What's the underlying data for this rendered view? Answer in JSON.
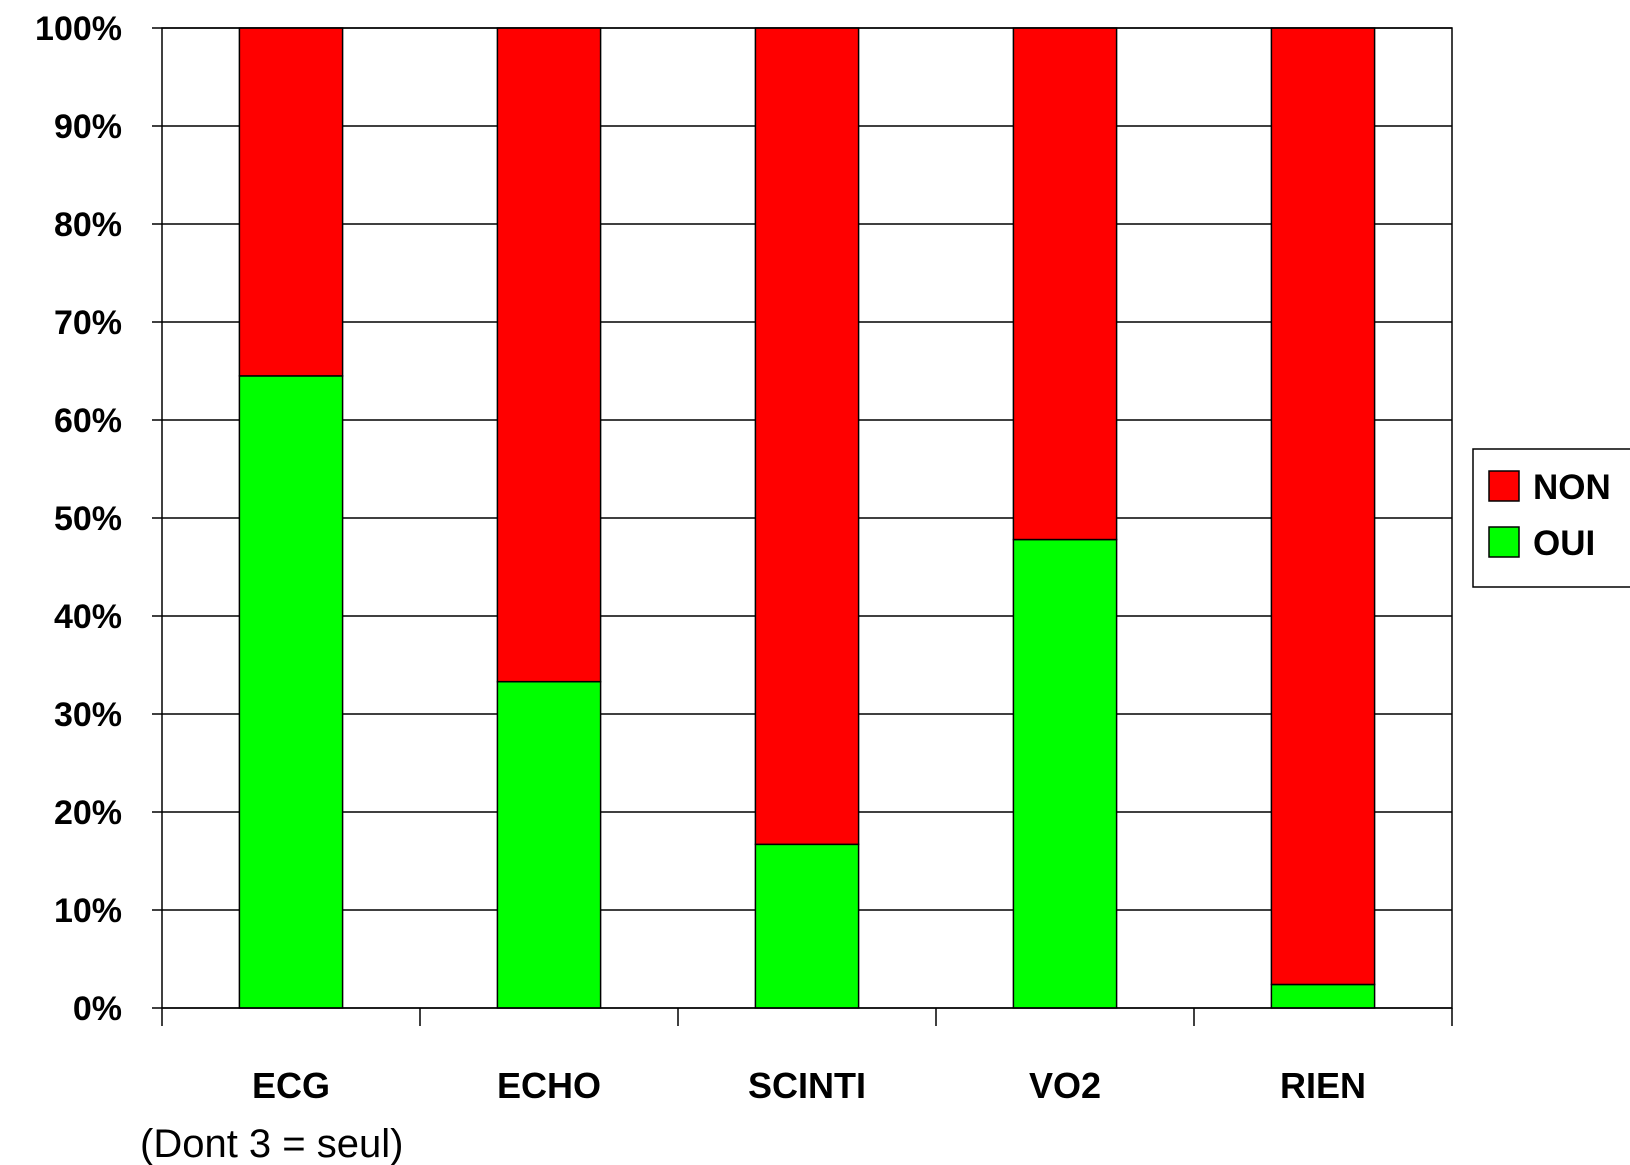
{
  "chart_data": {
    "type": "bar",
    "stacked": true,
    "percent": true,
    "categories": [
      "ECG",
      "ECHO",
      "SCINTI",
      "VO2",
      "RIEN"
    ],
    "series": [
      {
        "name": "OUI",
        "color": "#00FF00",
        "values": [
          64.5,
          33.3,
          16.7,
          47.8,
          2.4
        ]
      },
      {
        "name": "NON",
        "color": "#FF0000",
        "values": [
          35.5,
          66.7,
          83.3,
          52.2,
          97.6
        ]
      }
    ],
    "ylim": [
      0,
      100
    ],
    "yticks": [
      "0%",
      "10%",
      "20%",
      "30%",
      "40%",
      "50%",
      "60%",
      "70%",
      "80%",
      "90%",
      "100%"
    ],
    "grid": true,
    "legend": {
      "position": "right",
      "entries": [
        {
          "label": "NON",
          "color": "#FF0000"
        },
        {
          "label": "OUI",
          "color": "#00FF00"
        }
      ]
    },
    "annotation": "(Dont 3 = seul)",
    "title": "",
    "xlabel": "",
    "ylabel": ""
  }
}
